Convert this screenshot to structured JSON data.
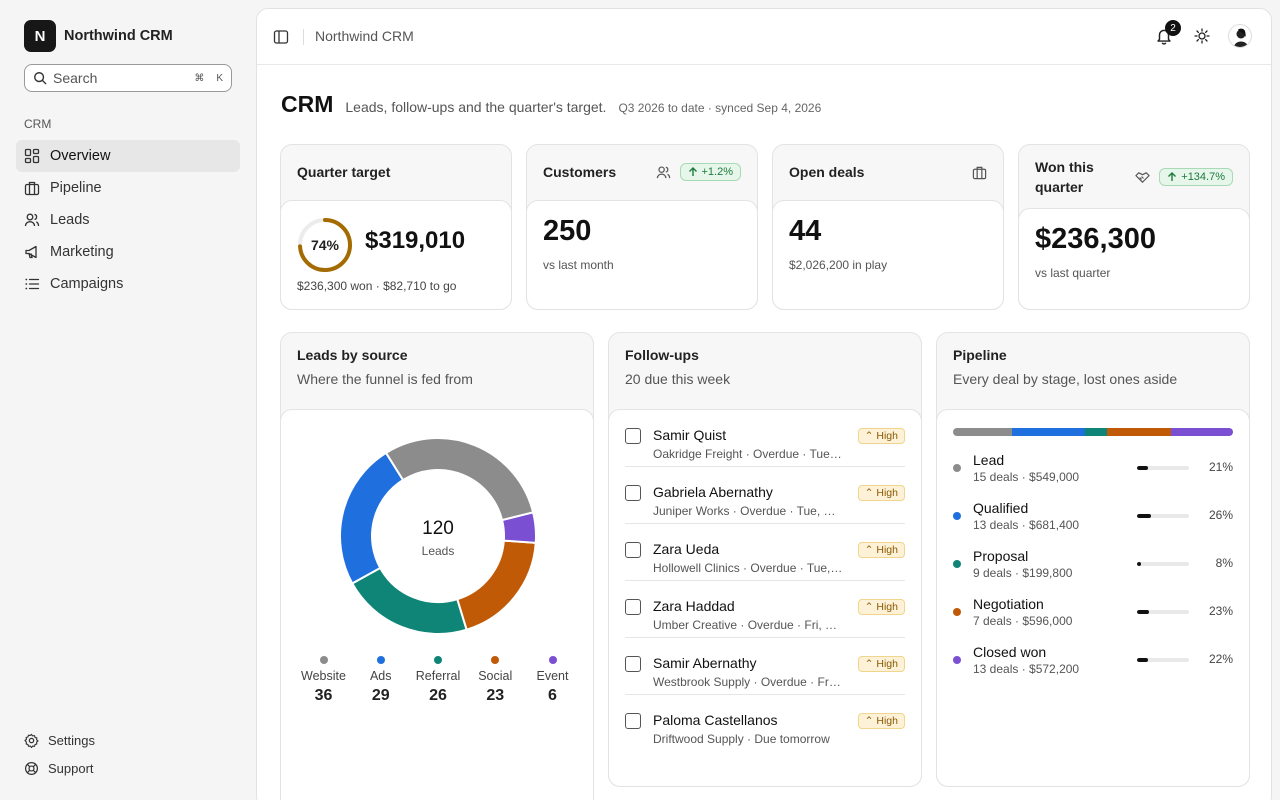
{
  "app": {
    "logo_letter": "N",
    "name": "Northwind CRM"
  },
  "search": {
    "label": "Search",
    "shortcut_mod": "⌘",
    "shortcut_key": "K"
  },
  "sidebar": {
    "section": "CRM",
    "items": [
      {
        "label": "Overview",
        "icon": "dashboard-icon"
      },
      {
        "label": "Pipeline",
        "icon": "briefcase-icon"
      },
      {
        "label": "Leads",
        "icon": "users-icon"
      },
      {
        "label": "Marketing",
        "icon": "megaphone-icon"
      },
      {
        "label": "Campaigns",
        "icon": "list-icon"
      }
    ],
    "footer": {
      "settings": "Settings",
      "support": "Support"
    }
  },
  "topbar": {
    "breadcrumb": "Northwind CRM",
    "notifications": "2"
  },
  "page": {
    "title": "CRM",
    "subtitle": "Leads, follow-ups and the quarter's target.",
    "meta": "Q3 2026 to date · synced Sep 4, 2026"
  },
  "kpis": {
    "target": {
      "title": "Quarter target",
      "percent_label": "74%",
      "percent": 0.74,
      "value": "$319,010",
      "note": "$236,300 won · $82,710 to go"
    },
    "customers": {
      "title": "Customers",
      "change": "+1.2%",
      "value": "250",
      "note": "vs last month"
    },
    "deals": {
      "title": "Open deals",
      "value": "44",
      "note": "$2,026,200 in play"
    },
    "won": {
      "title": "Won this quarter",
      "change": "+134.7%",
      "value": "$236,300",
      "note": "vs last quarter"
    }
  },
  "leads": {
    "title": "Leads by source",
    "subtitle": "Where the funnel is fed from",
    "total": "120",
    "total_label": "Leads",
    "sources": [
      {
        "name": "Website",
        "value": 36,
        "color": "#8c8c8c"
      },
      {
        "name": "Event",
        "value": 6,
        "color": "#7b4fd1"
      },
      {
        "name": "Social",
        "value": 23,
        "color": "#c15a06"
      },
      {
        "name": "Referral",
        "value": 26,
        "color": "#0f8577"
      },
      {
        "name": "Ads",
        "value": 29,
        "color": "#1f6fde"
      }
    ],
    "legend": [
      {
        "name": "Website",
        "value": "36",
        "color": "#8c8c8c"
      },
      {
        "name": "Ads",
        "value": "29",
        "color": "#1f6fde"
      },
      {
        "name": "Referral",
        "value": "26",
        "color": "#0f8577"
      },
      {
        "name": "Social",
        "value": "23",
        "color": "#c15a06"
      },
      {
        "name": "Event",
        "value": "6",
        "color": "#7b4fd1"
      }
    ]
  },
  "followups": {
    "title": "Follow-ups",
    "subtitle": "20 due this week",
    "items": [
      {
        "name": "Samir Quist",
        "detail": "Oakridge Freight · Overdue · Tue,…",
        "priority": "High"
      },
      {
        "name": "Gabriela Abernathy",
        "detail": "Juniper Works · Overdue · Tue, S…",
        "priority": "High"
      },
      {
        "name": "Zara Ueda",
        "detail": "Hollowell Clinics · Overdue · Tue, …",
        "priority": "High"
      },
      {
        "name": "Zara Haddad",
        "detail": "Umber Creative · Overdue · Fri, S…",
        "priority": "High"
      },
      {
        "name": "Samir Abernathy",
        "detail": "Westbrook Supply · Overdue · Fri…",
        "priority": "High"
      },
      {
        "name": "Paloma Castellanos",
        "detail": "Driftwood Supply · Due tomorrow",
        "priority": "High"
      }
    ]
  },
  "pipeline": {
    "title": "Pipeline",
    "subtitle": "Every deal by stage, lost ones aside",
    "stages": [
      {
        "name": "Lead",
        "detail": "15 deals · $549,000",
        "pct": "21%",
        "share": 0.21,
        "color": "#8c8c8c"
      },
      {
        "name": "Qualified",
        "detail": "13 deals · $681,400",
        "pct": "26%",
        "share": 0.26,
        "color": "#1f6fde"
      },
      {
        "name": "Proposal",
        "detail": "9 deals · $199,800",
        "pct": "8%",
        "share": 0.08,
        "color": "#0f8577"
      },
      {
        "name": "Negotiation",
        "detail": "7 deals · $596,000",
        "pct": "23%",
        "share": 0.23,
        "color": "#c15a06"
      },
      {
        "name": "Closed won",
        "detail": "13 deals · $572,200",
        "pct": "22%",
        "share": 0.22,
        "color": "#7b4fd1"
      }
    ]
  }
}
